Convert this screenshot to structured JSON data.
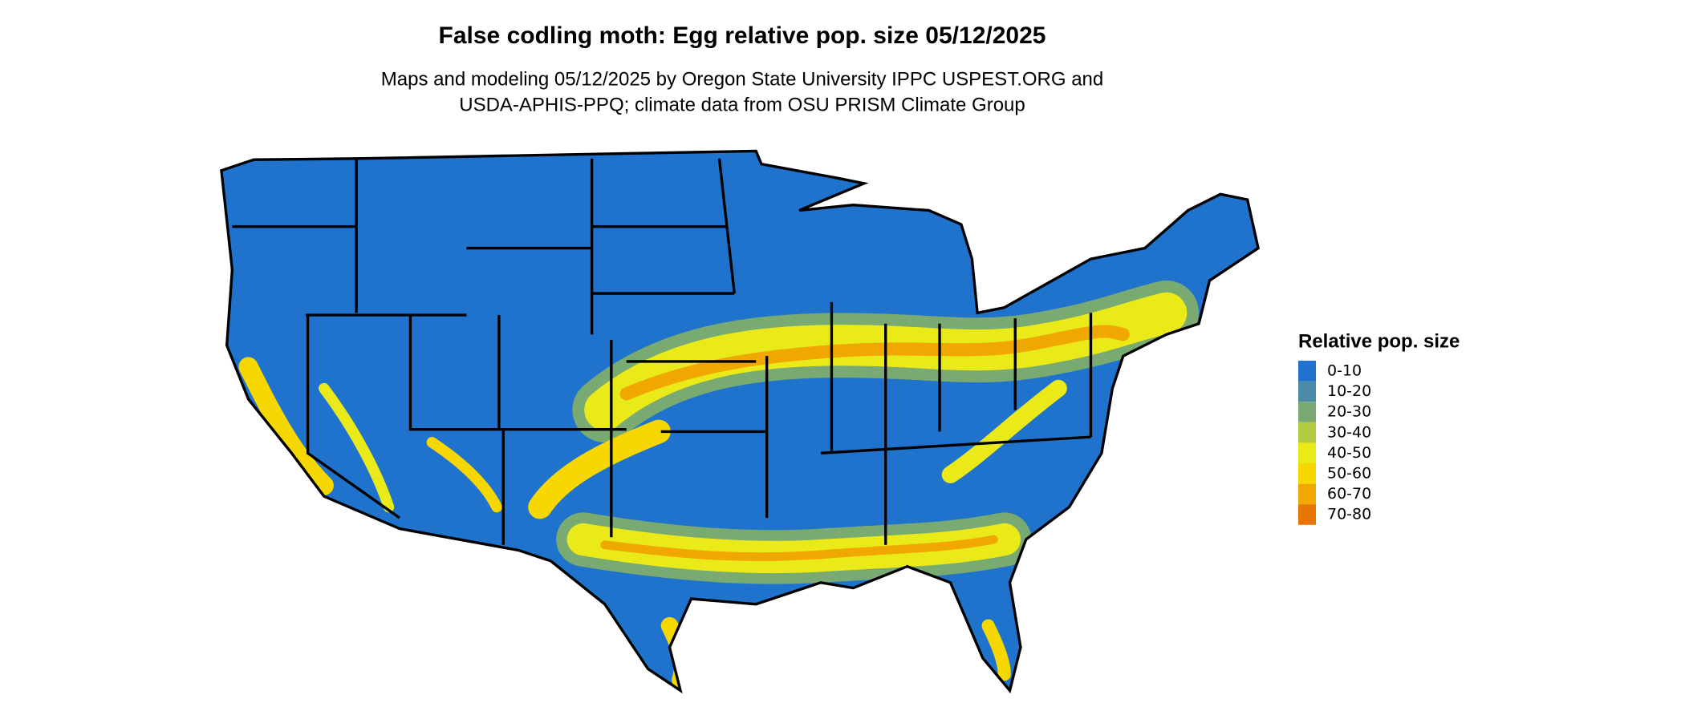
{
  "map": {
    "title": "False codling moth: Egg relative pop. size 05/12/2025",
    "subtitle": [
      "Maps and modeling 05/12/2025 by Oregon State University IPPC USPEST.ORG and",
      "USDA-APHIS-PPQ; climate data from OSU PRISM Climate Group"
    ],
    "legend": {
      "title": "Relative pop. size",
      "items": [
        {
          "label": "0-10",
          "color": "#1f73cc"
        },
        {
          "label": "10-20",
          "color": "#4b8ba8"
        },
        {
          "label": "20-30",
          "color": "#78aa72"
        },
        {
          "label": "30-40",
          "color": "#b1cd3f"
        },
        {
          "label": "40-50",
          "color": "#e9ea18"
        },
        {
          "label": "50-60",
          "color": "#f6d800"
        },
        {
          "label": "60-70",
          "color": "#f0a700"
        },
        {
          "label": "70-80",
          "color": "#e87500"
        }
      ]
    }
  }
}
